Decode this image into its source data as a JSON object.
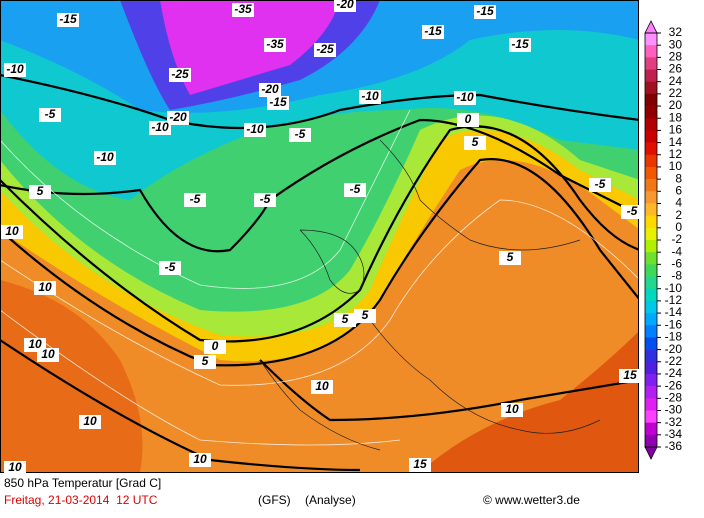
{
  "map": {
    "title": "850 hPa Temperatur [Grad C]",
    "date": "Freitag, 21-03-2014  12 UTC",
    "model": "(GFS)",
    "analysis": "(Analyse)",
    "credit": "© www.wetter3.de",
    "colorbar": {
      "ticks": [
        32,
        30,
        28,
        26,
        24,
        22,
        20,
        18,
        16,
        14,
        12,
        10,
        8,
        6,
        4,
        2,
        0,
        -2,
        -4,
        -6,
        -8,
        -10,
        -12,
        -14,
        -16,
        -18,
        -20,
        -22,
        -24,
        -26,
        -28,
        -30,
        -32,
        -34,
        -36
      ],
      "colors": [
        "#ff90ff",
        "#ff60c0",
        "#e04080",
        "#c02050",
        "#a01020",
        "#800000",
        "#900000",
        "#b00000",
        "#c80000",
        "#e01000",
        "#e83800",
        "#f05800",
        "#f07818",
        "#f89830",
        "#ffb828",
        "#ffd800",
        "#e8f000",
        "#b0f000",
        "#70e030",
        "#40d858",
        "#20d890",
        "#00d8c0",
        "#00c8e8",
        "#00a8ff",
        "#0080ff",
        "#0050f0",
        "#3030e0",
        "#5020e0",
        "#8020f0",
        "#b020f0",
        "#e020f0",
        "#ff40ff",
        "#c000d0",
        "#9000b0"
      ],
      "top_color": "#ff80ff",
      "bottom_color": "#8000a0"
    },
    "contour_labels": [
      -15,
      -35,
      -35,
      -25,
      -20,
      -15,
      -15,
      -15,
      -10,
      -25,
      -20,
      -15,
      -20,
      -10,
      -10,
      -10,
      -10,
      -10,
      -5,
      -5,
      -5,
      -5,
      -5,
      -5,
      -5,
      -5,
      0,
      0,
      5,
      5,
      5,
      5,
      5,
      5,
      10,
      10,
      10,
      10,
      10,
      10,
      10,
      10,
      10,
      15,
      15
    ]
  }
}
